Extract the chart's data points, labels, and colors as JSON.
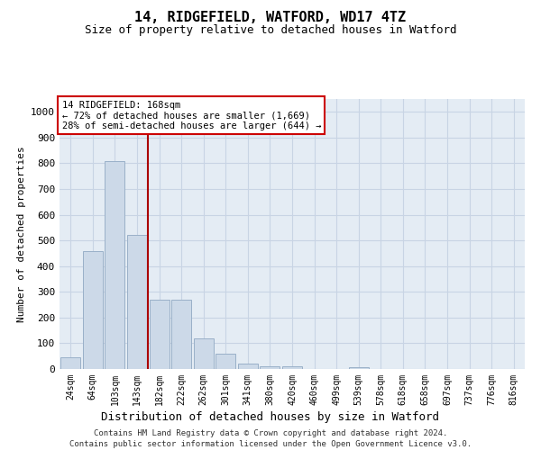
{
  "title": "14, RIDGEFIELD, WATFORD, WD17 4TZ",
  "subtitle": "Size of property relative to detached houses in Watford",
  "xlabel": "Distribution of detached houses by size in Watford",
  "ylabel": "Number of detached properties",
  "categories": [
    "24sqm",
    "64sqm",
    "103sqm",
    "143sqm",
    "182sqm",
    "222sqm",
    "262sqm",
    "301sqm",
    "341sqm",
    "380sqm",
    "420sqm",
    "460sqm",
    "499sqm",
    "539sqm",
    "578sqm",
    "618sqm",
    "658sqm",
    "697sqm",
    "737sqm",
    "776sqm",
    "816sqm"
  ],
  "values": [
    45,
    460,
    810,
    520,
    270,
    270,
    120,
    60,
    20,
    10,
    10,
    0,
    0,
    8,
    0,
    0,
    0,
    0,
    0,
    0,
    0
  ],
  "bar_color": "#ccd9e8",
  "bar_edge_color": "#9ab0c8",
  "marker_line_color": "#aa0000",
  "annotation_text": "14 RIDGEFIELD: 168sqm\n← 72% of detached houses are smaller (1,669)\n28% of semi-detached houses are larger (644) →",
  "annotation_box_facecolor": "#ffffff",
  "annotation_box_edge": "#cc0000",
  "ylim": [
    0,
    1050
  ],
  "yticks": [
    0,
    100,
    200,
    300,
    400,
    500,
    600,
    700,
    800,
    900,
    1000
  ],
  "grid_color": "#c8d4e4",
  "bg_color": "#e4ecf4",
  "title_fontsize": 11,
  "subtitle_fontsize": 9,
  "footer1": "Contains HM Land Registry data © Crown copyright and database right 2024.",
  "footer2": "Contains public sector information licensed under the Open Government Licence v3.0."
}
